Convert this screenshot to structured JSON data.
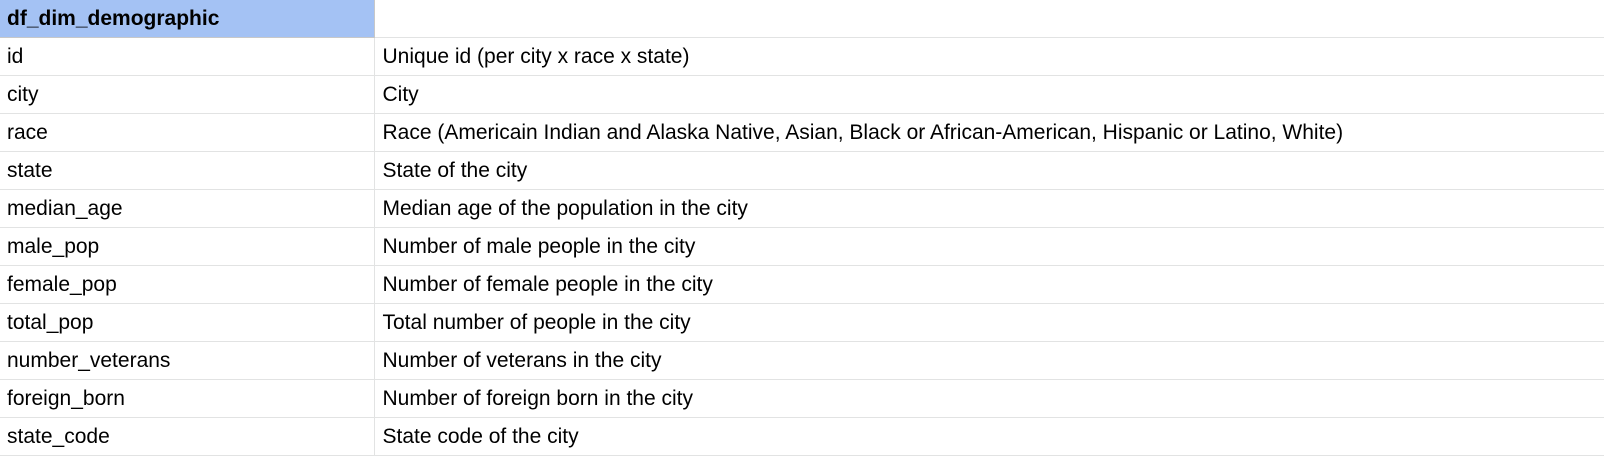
{
  "sheet": {
    "header": {
      "title": "df_dim_demographic",
      "second": ""
    },
    "header_color": "#a4c2f4",
    "rows": [
      {
        "field": "id",
        "description": "Unique id (per city x race x state)"
      },
      {
        "field": "city",
        "description": "City"
      },
      {
        "field": "race",
        "description": "Race (Americain Indian and Alaska Native, Asian, Black or African-American, Hispanic or Latino, White)"
      },
      {
        "field": "state",
        "description": "State of the city"
      },
      {
        "field": "median_age",
        "description": "Median age of the population in the city"
      },
      {
        "field": "male_pop",
        "description": "Number of male people in the city"
      },
      {
        "field": "female_pop",
        "description": "Number of female people in the city"
      },
      {
        "field": "total_pop",
        "description": "Total number of people in the city"
      },
      {
        "field": "number_veterans",
        "description": "Number of veterans in the city"
      },
      {
        "field": "foreign_born",
        "description": "Number of foreign born in the city"
      },
      {
        "field": "state_code",
        "description": "State code of the city"
      }
    ]
  }
}
